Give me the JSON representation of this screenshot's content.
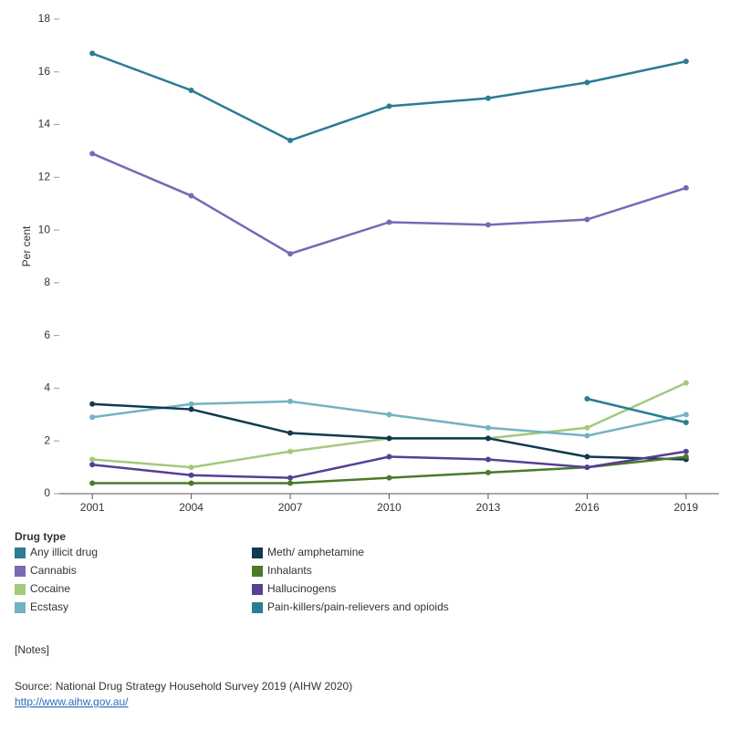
{
  "chart_data": {
    "type": "line",
    "y_label": "Per cent",
    "x": [
      2001,
      2004,
      2007,
      2010,
      2013,
      2016,
      2019
    ],
    "xlim": [
      2000,
      2020
    ],
    "xticks": [
      2001,
      2004,
      2007,
      2010,
      2013,
      2016,
      2019
    ],
    "ylim": [
      0,
      18
    ],
    "yticks": [
      0,
      2,
      4,
      6,
      8,
      10,
      12,
      14,
      16,
      18
    ],
    "legend_title": "Drug type",
    "series": [
      {
        "name": "Any illicit drug",
        "color": "#2b7c94",
        "values": [
          16.7,
          15.3,
          13.4,
          14.7,
          15.0,
          15.6,
          16.4
        ]
      },
      {
        "name": "Cannabis",
        "color": "#7a68b5",
        "values": [
          12.9,
          11.3,
          9.1,
          10.3,
          10.2,
          10.4,
          11.6
        ]
      },
      {
        "name": "Cocaine",
        "color": "#a3c97c",
        "values": [
          1.3,
          1.0,
          1.6,
          2.1,
          2.1,
          2.5,
          4.2
        ]
      },
      {
        "name": "Ecstasy",
        "color": "#73b2c2",
        "values": [
          2.9,
          3.4,
          3.5,
          3.0,
          2.5,
          2.2,
          3.0
        ]
      },
      {
        "name": "Meth/ amphetamine",
        "color": "#0f3a4f",
        "values": [
          3.4,
          3.2,
          2.3,
          2.1,
          2.1,
          1.4,
          1.3
        ]
      },
      {
        "name": "Inhalants",
        "color": "#4a7a2a",
        "values": [
          0.4,
          0.4,
          0.4,
          0.6,
          0.8,
          1.0,
          1.4
        ]
      },
      {
        "name": "Hallucinogens",
        "color": "#573f94",
        "values": [
          1.1,
          0.7,
          0.6,
          1.4,
          1.3,
          1.0,
          1.6
        ]
      },
      {
        "name": "Pain-killers/pain-relievers and opioids",
        "color": "#2a7d96",
        "values": [
          null,
          null,
          null,
          null,
          null,
          3.6,
          2.7
        ]
      }
    ]
  },
  "notes": "[Notes]",
  "source": "Source:  National Drug Strategy Household Survey 2019 (AIHW 2020)",
  "link": "http://www.aihw.gov.au/"
}
